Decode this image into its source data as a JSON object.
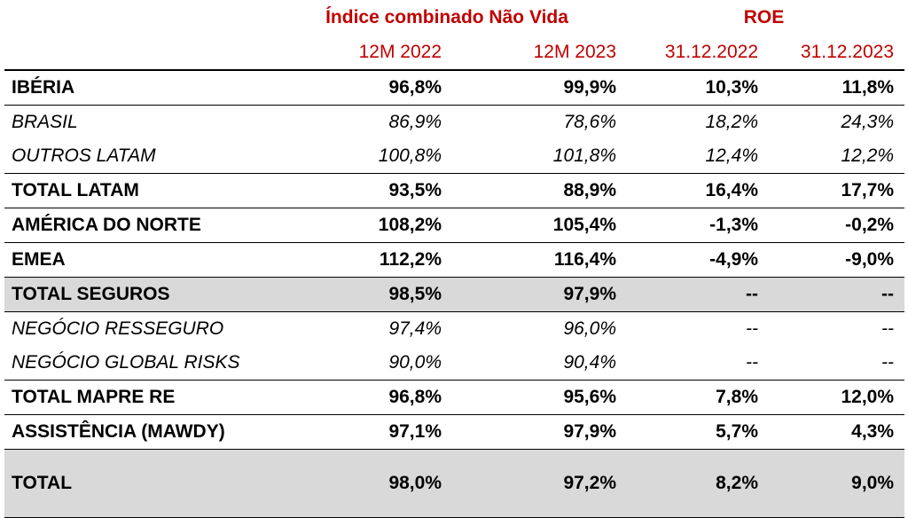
{
  "header": {
    "groups": [
      "Índice combinado Não Vida",
      "ROE"
    ],
    "columns": [
      "12M 2022",
      "12M 2023",
      "31.12.2022",
      "31.12.2023"
    ]
  },
  "rows": [
    {
      "label": "IBÉRIA",
      "values": [
        "96,8%",
        "99,9%",
        "10,3%",
        "11,8%"
      ]
    },
    {
      "label": "BRASIL",
      "values": [
        "86,9%",
        "78,6%",
        "18,2%",
        "24,3%"
      ]
    },
    {
      "label": "OUTROS LATAM",
      "values": [
        "100,8%",
        "101,8%",
        "12,4%",
        "12,2%"
      ]
    },
    {
      "label": "TOTAL LATAM",
      "values": [
        "93,5%",
        "88,9%",
        "16,4%",
        "17,7%"
      ]
    },
    {
      "label": "AMÉRICA DO NORTE",
      "values": [
        "108,2%",
        "105,4%",
        "-1,3%",
        "-0,2%"
      ]
    },
    {
      "label": "EMEA",
      "values": [
        "112,2%",
        "116,4%",
        "-4,9%",
        "-9,0%"
      ]
    },
    {
      "label": "TOTAL SEGUROS",
      "values": [
        "98,5%",
        "97,9%",
        "--",
        "--"
      ]
    },
    {
      "label": "NEGÓCIO RESSEGURO",
      "values": [
        "97,4%",
        "96,0%",
        "--",
        "--"
      ]
    },
    {
      "label": "NEGÓCIO GLOBAL RISKS",
      "values": [
        "90,0%",
        "90,4%",
        "--",
        "--"
      ]
    },
    {
      "label": "TOTAL MAPRE RE",
      "values": [
        "96,8%",
        "95,6%",
        "7,8%",
        "12,0%"
      ]
    },
    {
      "label": "ASSISTÊNCIA (MAWDY)",
      "values": [
        "97,1%",
        "97,9%",
        "5,7%",
        "4,3%"
      ]
    },
    {
      "label": "TOTAL",
      "values": [
        "98,0%",
        "97,2%",
        "8,2%",
        "9,0%"
      ]
    }
  ]
}
